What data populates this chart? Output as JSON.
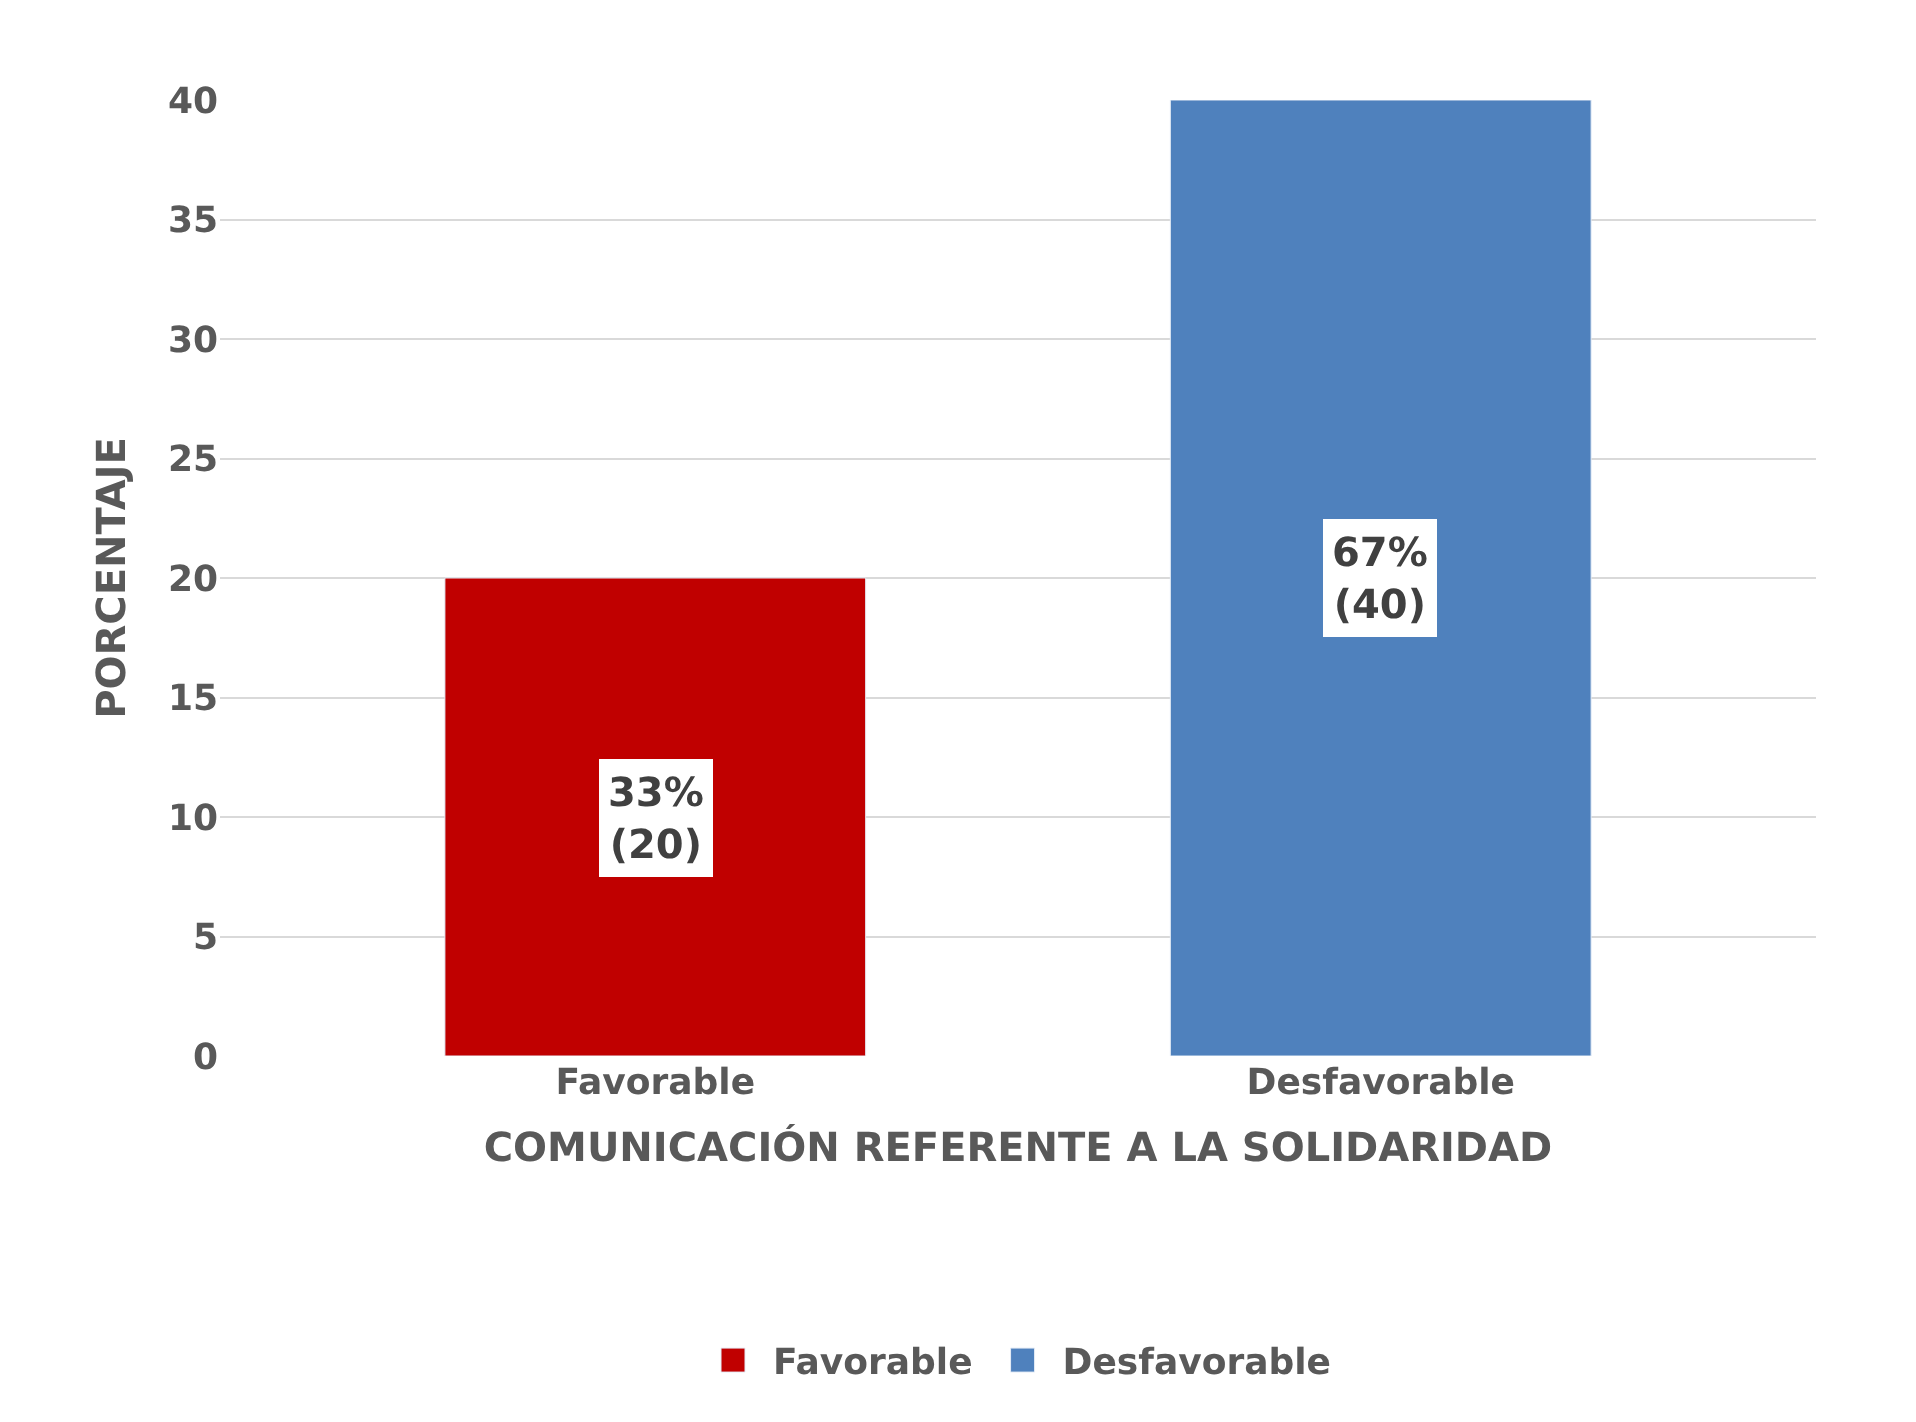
{
  "chart_data": {
    "type": "bar",
    "xlabel": "COMUNICACIÓN REFERENTE A LA SOLIDARIDAD",
    "ylabel": "PORCENTAJE",
    "categories": [
      "Favorable",
      "Desfavorable"
    ],
    "series": [
      {
        "name": "Favorable",
        "color": "#c00000",
        "values": [
          20,
          null
        ],
        "value_labels": [
          "33%\n(20)",
          null
        ]
      },
      {
        "name": "Desfavorable",
        "color": "#4f81bd",
        "values": [
          null,
          40
        ],
        "value_labels": [
          null,
          "67%\n(40)"
        ]
      }
    ],
    "ylim": [
      0,
      40
    ],
    "yticks": [
      0,
      5,
      10,
      15,
      20,
      25,
      30,
      35,
      40
    ],
    "grid": "y",
    "legend": "bottom"
  }
}
